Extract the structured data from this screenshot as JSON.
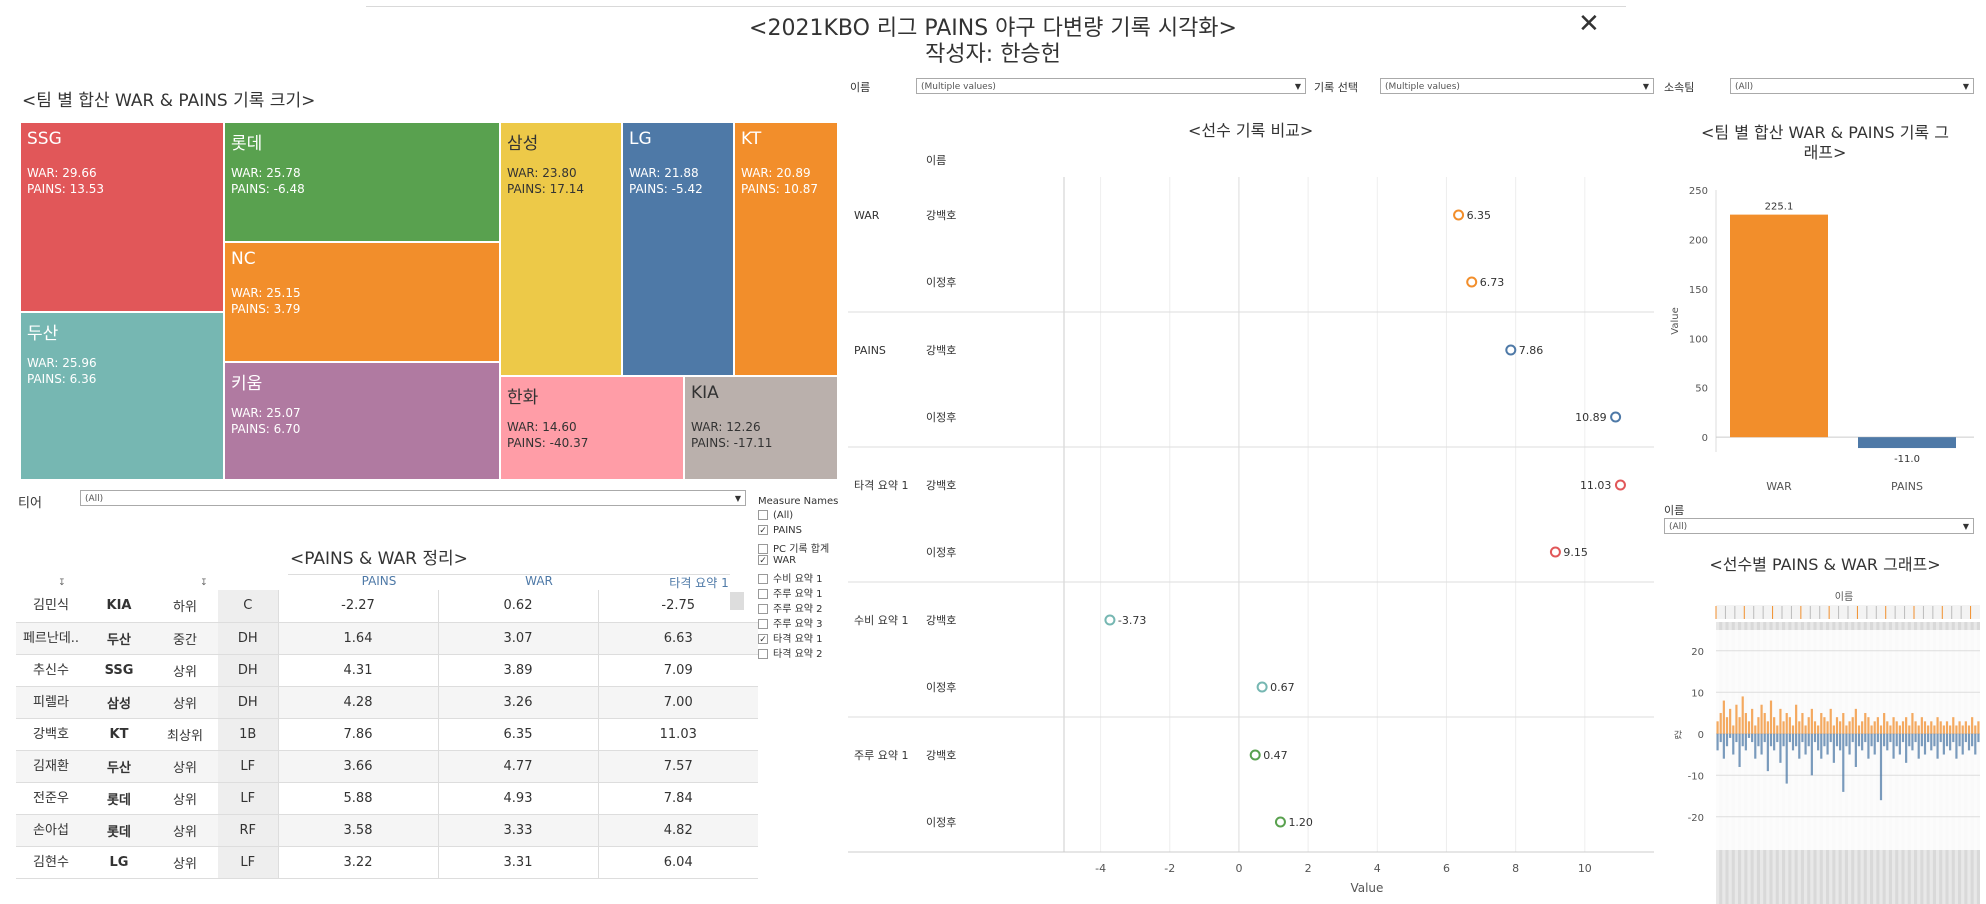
{
  "title": "<2021KBO 리그 PAINS 야구 다변량 기록 시각화>",
  "author": "작성자: 한승헌",
  "close_glyph": "✕",
  "treemap": {
    "heading": "<팀 별 합산 WAR & PAINS 기록 크기>",
    "cells": [
      {
        "team": "SSG",
        "war": "WAR: 29.66",
        "pains": "PAINS: 13.53",
        "color": "#e15759"
      },
      {
        "team": "롯데",
        "war": "WAR: 25.78",
        "pains": "PAINS: -6.48",
        "color": "#59a14f"
      },
      {
        "team": "삼성",
        "war": "WAR: 23.80",
        "pains": "PAINS: 17.14",
        "color": "#edc948"
      },
      {
        "team": "LG",
        "war": "WAR: 21.88",
        "pains": "PAINS: -5.42",
        "color": "#4e79a7"
      },
      {
        "team": "KT",
        "war": "WAR: 20.89",
        "pains": "PAINS: 10.87",
        "color": "#f28e2b"
      },
      {
        "team": "NC",
        "war": "WAR: 25.15",
        "pains": "PAINS: 3.79",
        "color": "#f28e2b"
      },
      {
        "team": "두산",
        "war": "WAR: 25.96",
        "pains": "PAINS: 6.36",
        "color": "#76b7b2"
      },
      {
        "team": "키움",
        "war": "WAR: 25.07",
        "pains": "PAINS: 6.70",
        "color": "#b07aa1"
      },
      {
        "team": "한화",
        "war": "WAR: 14.60",
        "pains": "PAINS: -40.37",
        "color": "#ff9da7"
      },
      {
        "team": "KIA",
        "war": "WAR: 12.26",
        "pains": "PAINS: -17.11",
        "color": "#bab0ac"
      }
    ]
  },
  "filters": {
    "tier_label": "티어",
    "tier_value": "(All)",
    "name_label": "이름",
    "name_value": "(Multiple values)",
    "record_label": "기록 선택",
    "record_value": "(Multiple values)",
    "team_label": "소속팀",
    "team_value": "(All)",
    "name2_label": "이름",
    "name2_value": "(All)"
  },
  "measure_names": {
    "heading": "Measure Names",
    "items": [
      {
        "label": "(All)",
        "checked": ""
      },
      {
        "label": "PAINS",
        "checked": "✓"
      },
      {
        "label": "PC 기록 합계",
        "checked": ""
      },
      {
        "label": "WAR",
        "checked": "✓"
      },
      {
        "label": "수비 요약 1",
        "checked": ""
      },
      {
        "label": "주루 요약 1",
        "checked": ""
      },
      {
        "label": "주루 요약 2",
        "checked": ""
      },
      {
        "label": "주루 요약 3",
        "checked": ""
      },
      {
        "label": "타격 요약 1",
        "checked": "✓"
      },
      {
        "label": "타격 요약 2",
        "checked": ""
      }
    ]
  },
  "table": {
    "heading": "<PAINS & WAR 정리>",
    "headers": [
      "PAINS",
      "WAR",
      "타격 요약 1"
    ],
    "rows": [
      [
        "김민식",
        "KIA",
        "하위",
        "C",
        "-2.27",
        "0.62",
        "-2.75"
      ],
      [
        "페르난데..",
        "두산",
        "중간",
        "DH",
        "1.64",
        "3.07",
        "6.63"
      ],
      [
        "추신수",
        "SSG",
        "상위",
        "DH",
        "4.31",
        "3.89",
        "7.09"
      ],
      [
        "피렐라",
        "삼성",
        "상위",
        "DH",
        "4.28",
        "3.26",
        "7.00"
      ],
      [
        "강백호",
        "KT",
        "최상위",
        "1B",
        "7.86",
        "6.35",
        "11.03"
      ],
      [
        "김재환",
        "두산",
        "상위",
        "LF",
        "3.66",
        "4.77",
        "7.57"
      ],
      [
        "전준우",
        "롯데",
        "상위",
        "LF",
        "5.88",
        "4.93",
        "7.84"
      ],
      [
        "손아섭",
        "롯데",
        "상위",
        "RF",
        "3.58",
        "3.33",
        "4.82"
      ],
      [
        "김현수",
        "LG",
        "상위",
        "LF",
        "3.22",
        "3.31",
        "6.04"
      ]
    ]
  },
  "chart_data": [
    {
      "type": "scatter",
      "title": "<선수 기록 비교>",
      "row_header": "이름",
      "xlabel": "Value",
      "xlim": [
        -5,
        12
      ],
      "xticks": [
        -4,
        -2,
        0,
        2,
        4,
        6,
        8,
        10
      ],
      "groups": [
        {
          "measure": "WAR",
          "color": "#f28e2b",
          "points": [
            {
              "name": "강백호",
              "value": 6.35,
              "label": "6.35"
            },
            {
              "name": "이정후",
              "value": 6.73,
              "label": "6.73"
            }
          ]
        },
        {
          "measure": "PAINS",
          "color": "#4e79a7",
          "points": [
            {
              "name": "강백호",
              "value": 7.86,
              "label": "7.86"
            },
            {
              "name": "이정후",
              "value": 10.89,
              "label": "10.89"
            }
          ]
        },
        {
          "measure": "타격 요약 1",
          "color": "#e15759",
          "points": [
            {
              "name": "강백호",
              "value": 11.03,
              "label": "11.03"
            },
            {
              "name": "이정후",
              "value": 9.15,
              "label": "9.15"
            }
          ]
        },
        {
          "measure": "수비 요약 1",
          "color": "#76b7b2",
          "points": [
            {
              "name": "강백호",
              "value": -3.73,
              "label": "-3.73"
            },
            {
              "name": "이정후",
              "value": 0.67,
              "label": "0.67"
            }
          ]
        },
        {
          "measure": "주루 요약 1",
          "color": "#59a14f",
          "points": [
            {
              "name": "강백호",
              "value": 0.47,
              "label": "0.47"
            },
            {
              "name": "이정후",
              "value": 1.2,
              "label": "1.20"
            }
          ]
        }
      ]
    },
    {
      "type": "bar",
      "title": "<팀 별 합산 WAR & PAINS 기록 그래프>",
      "categories": [
        "WAR",
        "PAINS"
      ],
      "values": [
        225.1,
        -11.0
      ],
      "labels": [
        "225.1",
        "-11.0"
      ],
      "colors": [
        "#f28e2b",
        "#4e79a7"
      ],
      "ylabel": "Value",
      "ylim": [
        -15,
        250
      ],
      "yticks": [
        0,
        50,
        100,
        150,
        200,
        250
      ]
    },
    {
      "type": "bar",
      "title": "<선수별 PAINS & WAR 그래프>",
      "xlabel": "이름",
      "ylabel": "값",
      "ylim": [
        -28,
        25
      ],
      "yticks": [
        20,
        10,
        0,
        -10,
        -20
      ],
      "series": [
        {
          "color": "#f28e2b",
          "values": [
            3,
            5,
            8,
            4,
            6,
            2,
            7,
            4,
            9,
            5,
            3,
            6,
            2,
            4,
            7,
            5,
            3,
            8,
            4,
            2,
            6,
            3,
            5,
            4,
            2,
            7,
            3,
            5,
            2,
            4,
            6,
            3,
            2,
            5,
            4,
            3,
            6,
            2,
            4,
            3,
            5,
            2,
            3,
            4,
            6,
            2,
            3,
            5,
            4,
            2,
            3,
            4,
            2,
            5,
            3,
            2,
            4,
            3,
            2,
            3,
            4,
            2,
            5,
            3,
            2,
            4,
            3,
            2,
            3,
            2,
            4,
            3,
            2,
            3,
            2,
            4,
            2,
            3,
            2,
            3,
            2,
            4,
            2,
            3
          ]
        },
        {
          "color": "#4e79a7",
          "values": [
            -4,
            -2,
            -6,
            -3,
            -1,
            -5,
            -2,
            -8,
            -3,
            -4,
            -1,
            -2,
            -6,
            -3,
            -5,
            -2,
            -9,
            -3,
            -4,
            -2,
            -7,
            -3,
            -12,
            -2,
            -4,
            -3,
            -6,
            -2,
            -5,
            -3,
            -10,
            -2,
            -4,
            -6,
            -3,
            -5,
            -2,
            -7,
            -3,
            -4,
            -14,
            -3,
            -5,
            -2,
            -8,
            -3,
            -4,
            -2,
            -6,
            -3,
            -5,
            -2,
            -16,
            -3,
            -4,
            -2,
            -6,
            -3,
            -5,
            -2,
            -7,
            -3,
            -4,
            -2,
            -6,
            -3,
            -5,
            -2,
            -4,
            -3,
            -6,
            -2,
            -5,
            -3,
            -4,
            -2,
            -6,
            -3,
            -5,
            -2,
            -4,
            -3,
            -5,
            -2
          ]
        }
      ]
    }
  ]
}
